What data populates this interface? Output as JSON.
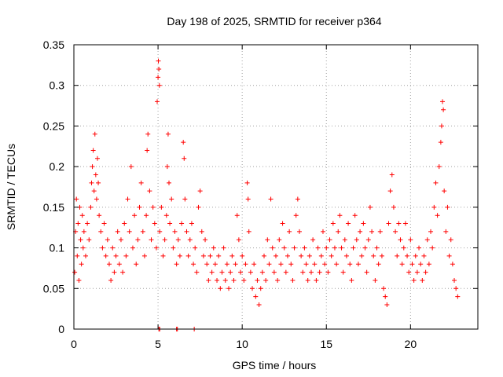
{
  "chart_data": {
    "type": "scatter",
    "title": "Day 198 of 2025, SRMTID for receiver p364",
    "xlabel": "GPS time / hours",
    "ylabel": "SRMTID / TECUs",
    "xlim": [
      0,
      24
    ],
    "ylim": [
      0,
      0.35
    ],
    "grid": true,
    "marker": "+",
    "marker_color": "#ff0000",
    "x_ticks": [
      {
        "value": 0,
        "label": "0"
      },
      {
        "value": 5,
        "label": "5"
      },
      {
        "value": 10,
        "label": "10"
      },
      {
        "value": 15,
        "label": "15"
      },
      {
        "value": 20,
        "label": "20"
      }
    ],
    "y_ticks": [
      {
        "value": 0,
        "label": "0"
      },
      {
        "value": 0.05,
        "label": "0.05"
      },
      {
        "value": 0.1,
        "label": "0.1"
      },
      {
        "value": 0.15,
        "label": "0.15"
      },
      {
        "value": 0.2,
        "label": "0.2"
      },
      {
        "value": 0.25,
        "label": "0.25"
      },
      {
        "value": 0.3,
        "label": "0.3"
      },
      {
        "value": 0.35,
        "label": "0.35"
      }
    ],
    "series": [
      {
        "name": "SRMTID",
        "points": [
          [
            0.05,
            0.07
          ],
          [
            0.1,
            0.12
          ],
          [
            0.15,
            0.16
          ],
          [
            0.2,
            0.09
          ],
          [
            0.25,
            0.13
          ],
          [
            0.3,
            0.06
          ],
          [
            0.35,
            0.15
          ],
          [
            0.4,
            0.11
          ],
          [
            0.45,
            0.08
          ],
          [
            0.5,
            0.14
          ],
          [
            0.55,
            0.1
          ],
          [
            0.6,
            0.12
          ],
          [
            0.7,
            0.09
          ],
          [
            0.8,
            0.13
          ],
          [
            0.9,
            0.11
          ],
          [
            1.0,
            0.15
          ],
          [
            1.05,
            0.18
          ],
          [
            1.1,
            0.2
          ],
          [
            1.15,
            0.22
          ],
          [
            1.2,
            0.17
          ],
          [
            1.25,
            0.24
          ],
          [
            1.3,
            0.19
          ],
          [
            1.35,
            0.16
          ],
          [
            1.4,
            0.21
          ],
          [
            1.45,
            0.18
          ],
          [
            1.5,
            0.14
          ],
          [
            1.6,
            0.12
          ],
          [
            1.7,
            0.1
          ],
          [
            1.8,
            0.13
          ],
          [
            1.9,
            0.09
          ],
          [
            2.0,
            0.11
          ],
          [
            2.1,
            0.08
          ],
          [
            2.2,
            0.06
          ],
          [
            2.3,
            0.1
          ],
          [
            2.4,
            0.07
          ],
          [
            2.5,
            0.09
          ],
          [
            2.6,
            0.12
          ],
          [
            2.7,
            0.08
          ],
          [
            2.8,
            0.11
          ],
          [
            2.9,
            0.07
          ],
          [
            3.0,
            0.13
          ],
          [
            3.1,
            0.09
          ],
          [
            3.2,
            0.16
          ],
          [
            3.3,
            0.12
          ],
          [
            3.4,
            0.2
          ],
          [
            3.5,
            0.1
          ],
          [
            3.6,
            0.14
          ],
          [
            3.7,
            0.08
          ],
          [
            3.8,
            0.11
          ],
          [
            3.9,
            0.15
          ],
          [
            4.0,
            0.18
          ],
          [
            4.1,
            0.12
          ],
          [
            4.2,
            0.09
          ],
          [
            4.3,
            0.14
          ],
          [
            4.35,
            0.22
          ],
          [
            4.4,
            0.24
          ],
          [
            4.5,
            0.17
          ],
          [
            4.6,
            0.11
          ],
          [
            4.7,
            0.15
          ],
          [
            4.8,
            0.13
          ],
          [
            4.9,
            0.1
          ],
          [
            4.95,
            0.28
          ],
          [
            5.0,
            0.31
          ],
          [
            5.02,
            0.33
          ],
          [
            5.05,
            0.32
          ],
          [
            5.08,
            0.3
          ],
          [
            5.1,
            0.12
          ],
          [
            5.2,
            0.15
          ],
          [
            5.3,
            0.09
          ],
          [
            5.4,
            0.11
          ],
          [
            5.5,
            0.14
          ],
          [
            5.55,
            0.2
          ],
          [
            5.6,
            0.24
          ],
          [
            5.65,
            0.18
          ],
          [
            5.7,
            0.13
          ],
          [
            5.8,
            0.16
          ],
          [
            5.9,
            0.1
          ],
          [
            6.0,
            0.12
          ],
          [
            6.1,
            0.08
          ],
          [
            6.2,
            0.11
          ],
          [
            6.3,
            0.09
          ],
          [
            6.4,
            0.13
          ],
          [
            6.5,
            0.23
          ],
          [
            6.55,
            0.21
          ],
          [
            6.6,
            0.16
          ],
          [
            6.7,
            0.12
          ],
          [
            6.8,
            0.09
          ],
          [
            6.9,
            0.11
          ],
          [
            7.0,
            0.13
          ],
          [
            7.1,
            0.08
          ],
          [
            7.2,
            0.1
          ],
          [
            7.3,
            0.07
          ],
          [
            7.4,
            0.15
          ],
          [
            7.5,
            0.17
          ],
          [
            7.6,
            0.12
          ],
          [
            7.7,
            0.09
          ],
          [
            7.8,
            0.11
          ],
          [
            7.9,
            0.08
          ],
          [
            8.0,
            0.06
          ],
          [
            8.1,
            0.09
          ],
          [
            8.2,
            0.07
          ],
          [
            8.3,
            0.1
          ],
          [
            8.4,
            0.08
          ],
          [
            8.5,
            0.06
          ],
          [
            8.6,
            0.09
          ],
          [
            8.7,
            0.05
          ],
          [
            8.8,
            0.07
          ],
          [
            8.9,
            0.1
          ],
          [
            9.0,
            0.06
          ],
          [
            9.1,
            0.08
          ],
          [
            9.2,
            0.05
          ],
          [
            9.3,
            0.07
          ],
          [
            9.4,
            0.09
          ],
          [
            9.5,
            0.06
          ],
          [
            9.6,
            0.08
          ],
          [
            9.7,
            0.14
          ],
          [
            9.8,
            0.11
          ],
          [
            9.9,
            0.07
          ],
          [
            10.0,
            0.09
          ],
          [
            10.1,
            0.06
          ],
          [
            10.2,
            0.08
          ],
          [
            10.3,
            0.18
          ],
          [
            10.35,
            0.16
          ],
          [
            10.4,
            0.12
          ],
          [
            10.5,
            0.07
          ],
          [
            10.6,
            0.05
          ],
          [
            10.7,
            0.08
          ],
          [
            10.8,
            0.04
          ],
          [
            10.9,
            0.06
          ],
          [
            11.0,
            0.03
          ],
          [
            11.1,
            0.05
          ],
          [
            11.2,
            0.07
          ],
          [
            11.3,
            0.09
          ],
          [
            11.4,
            0.06
          ],
          [
            11.5,
            0.11
          ],
          [
            11.6,
            0.08
          ],
          [
            11.7,
            0.16
          ],
          [
            11.8,
            0.1
          ],
          [
            11.9,
            0.07
          ],
          [
            12.0,
            0.09
          ],
          [
            12.1,
            0.06
          ],
          [
            12.2,
            0.11
          ],
          [
            12.3,
            0.08
          ],
          [
            12.4,
            0.13
          ],
          [
            12.5,
            0.1
          ],
          [
            12.6,
            0.07
          ],
          [
            12.7,
            0.09
          ],
          [
            12.8,
            0.12
          ],
          [
            12.9,
            0.08
          ],
          [
            13.0,
            0.06
          ],
          [
            13.1,
            0.1
          ],
          [
            13.2,
            0.14
          ],
          [
            13.3,
            0.16
          ],
          [
            13.4,
            0.12
          ],
          [
            13.5,
            0.09
          ],
          [
            13.6,
            0.07
          ],
          [
            13.7,
            0.1
          ],
          [
            13.8,
            0.08
          ],
          [
            13.9,
            0.06
          ],
          [
            14.0,
            0.09
          ],
          [
            14.1,
            0.07
          ],
          [
            14.2,
            0.11
          ],
          [
            14.3,
            0.08
          ],
          [
            14.4,
            0.06
          ],
          [
            14.5,
            0.1
          ],
          [
            14.6,
            0.07
          ],
          [
            14.7,
            0.09
          ],
          [
            14.8,
            0.12
          ],
          [
            14.9,
            0.08
          ],
          [
            15.0,
            0.1
          ],
          [
            15.1,
            0.07
          ],
          [
            15.2,
            0.11
          ],
          [
            15.3,
            0.09
          ],
          [
            15.4,
            0.13
          ],
          [
            15.5,
            0.1
          ],
          [
            15.6,
            0.08
          ],
          [
            15.7,
            0.12
          ],
          [
            15.8,
            0.14
          ],
          [
            15.9,
            0.1
          ],
          [
            16.0,
            0.07
          ],
          [
            16.1,
            0.11
          ],
          [
            16.2,
            0.09
          ],
          [
            16.3,
            0.13
          ],
          [
            16.4,
            0.08
          ],
          [
            16.5,
            0.06
          ],
          [
            16.6,
            0.1
          ],
          [
            16.7,
            0.14
          ],
          [
            16.8,
            0.11
          ],
          [
            16.9,
            0.08
          ],
          [
            17.0,
            0.12
          ],
          [
            17.1,
            0.09
          ],
          [
            17.2,
            0.13
          ],
          [
            17.3,
            0.1
          ],
          [
            17.4,
            0.07
          ],
          [
            17.5,
            0.11
          ],
          [
            17.6,
            0.15
          ],
          [
            17.7,
            0.12
          ],
          [
            17.8,
            0.09
          ],
          [
            17.9,
            0.06
          ],
          [
            18.0,
            0.1
          ],
          [
            18.1,
            0.08
          ],
          [
            18.2,
            0.12
          ],
          [
            18.3,
            0.09
          ],
          [
            18.4,
            0.05
          ],
          [
            18.5,
            0.04
          ],
          [
            18.6,
            0.03
          ],
          [
            18.7,
            0.13
          ],
          [
            18.8,
            0.17
          ],
          [
            18.9,
            0.19
          ],
          [
            19.0,
            0.15
          ],
          [
            19.1,
            0.12
          ],
          [
            19.2,
            0.09
          ],
          [
            19.3,
            0.13
          ],
          [
            19.4,
            0.11
          ],
          [
            19.5,
            0.08
          ],
          [
            19.6,
            0.1
          ],
          [
            19.7,
            0.13
          ],
          [
            19.8,
            0.09
          ],
          [
            19.9,
            0.07
          ],
          [
            20.0,
            0.11
          ],
          [
            20.1,
            0.08
          ],
          [
            20.2,
            0.06
          ],
          [
            20.3,
            0.09
          ],
          [
            20.4,
            0.07
          ],
          [
            20.5,
            0.1
          ],
          [
            20.6,
            0.08
          ],
          [
            20.7,
            0.06
          ],
          [
            20.8,
            0.09
          ],
          [
            20.9,
            0.07
          ],
          [
            21.0,
            0.11
          ],
          [
            21.1,
            0.08
          ],
          [
            21.2,
            0.12
          ],
          [
            21.3,
            0.1
          ],
          [
            21.4,
            0.15
          ],
          [
            21.5,
            0.18
          ],
          [
            21.6,
            0.14
          ],
          [
            21.7,
            0.2
          ],
          [
            21.8,
            0.23
          ],
          [
            21.85,
            0.25
          ],
          [
            21.9,
            0.28
          ],
          [
            21.95,
            0.27
          ],
          [
            22.0,
            0.17
          ],
          [
            22.1,
            0.12
          ],
          [
            22.2,
            0.15
          ],
          [
            22.3,
            0.09
          ],
          [
            22.4,
            0.11
          ],
          [
            22.5,
            0.08
          ],
          [
            22.6,
            0.06
          ],
          [
            22.7,
            0.05
          ],
          [
            22.8,
            0.04
          ]
        ]
      }
    ],
    "zero_markers": [
      5.05,
      5.1,
      6.1,
      6.15,
      7.15
    ]
  }
}
